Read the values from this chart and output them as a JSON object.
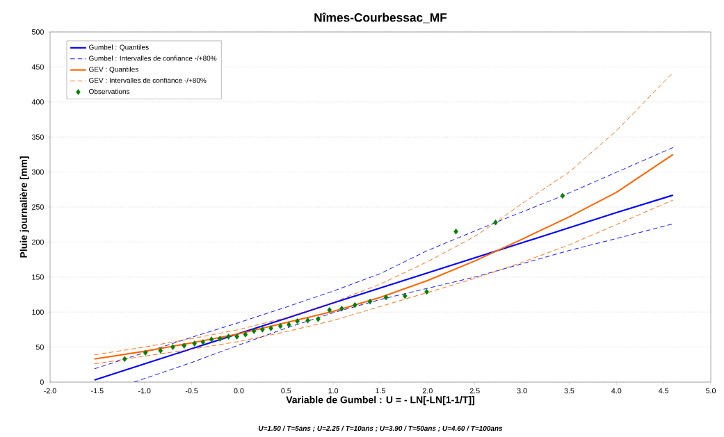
{
  "chart_data": {
    "type": "line",
    "title": "Nîmes-Courbessac_MF",
    "xlabel": "Variable de Gumbel : U = - LN[-LN[1-1/T]]",
    "ylabel": "Pluie journalière [mm]",
    "annotations": [
      "U=1.50 / T=5ans ; U=2.25 / T=10ans ; U=3.90 / T=50ans ; U=4.60 / T=100ans"
    ],
    "xlim": [
      -2,
      5
    ],
    "ylim": [
      0,
      500
    ],
    "xticks": [
      {
        "value": -2,
        "label": "-2.0"
      },
      {
        "value": -1.5,
        "label": "-1.5"
      },
      {
        "value": -1,
        "label": "-1.0"
      },
      {
        "value": -0.5,
        "label": "-0.5"
      },
      {
        "value": 0,
        "label": "0.0"
      },
      {
        "value": 0.5,
        "label": "0.5"
      },
      {
        "value": 1,
        "label": "1.0"
      },
      {
        "value": 1.5,
        "label": "1.5"
      },
      {
        "value": 2,
        "label": "2.0"
      },
      {
        "value": 2.5,
        "label": "2.5"
      },
      {
        "value": 3,
        "label": "3.0"
      },
      {
        "value": 3.5,
        "label": "3.5"
      },
      {
        "value": 4,
        "label": "4.0"
      },
      {
        "value": 4.5,
        "label": "4.5"
      },
      {
        "value": 5,
        "label": "5.0"
      }
    ],
    "yticks": [
      0,
      50,
      100,
      150,
      200,
      250,
      300,
      350,
      400,
      450,
      500
    ],
    "grid": "y",
    "legend": "top left",
    "series": [
      {
        "name": "Gumbel : Quantiles",
        "color": "#0000ff",
        "line_style": "solid",
        "marker": "none",
        "x": [
          -1.53,
          -1,
          0.5,
          1,
          2,
          3,
          4,
          4.6
        ],
        "values": [
          3,
          26,
          91,
          113,
          156,
          199,
          242,
          267
        ]
      },
      {
        "name": "Gumbel : Intervalles de confiance -/+80%",
        "color": "#0000ff",
        "line_style": "dashed",
        "marker": "none",
        "x": [
          -1.53,
          -1,
          -0.5,
          0,
          0.5,
          1,
          1.5,
          2,
          2.72,
          3.43,
          4.6
        ],
        "values": [
          19,
          42,
          64,
          85,
          107,
          130,
          155,
          188,
          228,
          266,
          335
        ]
      },
      {
        "color": "#0000ff",
        "line_style": "dashed",
        "marker": "none",
        "x": [
          -1.11,
          -0.5,
          0,
          0.5,
          1,
          1.5,
          2,
          2.5,
          3,
          3.5,
          4,
          4.6
        ],
        "values": [
          0,
          28,
          53,
          77,
          99,
          118,
          134,
          150,
          169,
          188,
          205,
          226
        ]
      },
      {
        "name": "GEV : Quantiles",
        "color": "#ff6600",
        "line_style": "solid",
        "marker": "none",
        "x": [
          -1.53,
          -1,
          -0.5,
          0,
          0.5,
          1,
          1.5,
          2,
          2.5,
          3,
          3.5,
          4,
          4.6
        ],
        "values": [
          33,
          44,
          56,
          69,
          85,
          101,
          121,
          145,
          173,
          204,
          236,
          271,
          325
        ]
      },
      {
        "name": "GEV : Intervalles de confiance -/+80%",
        "color": "#ff6600",
        "line_style": "dashed",
        "marker": "none",
        "x": [
          -1.53,
          -1,
          -0.5,
          0,
          0.5,
          1,
          1.5,
          2,
          2.5,
          2.72,
          3,
          3.5,
          4,
          4.6
        ],
        "values": [
          39,
          50,
          62,
          75,
          92,
          114,
          140,
          172,
          208,
          228,
          255,
          300,
          359,
          442
        ]
      },
      {
        "color": "#ff6600",
        "line_style": "dashed",
        "marker": "none",
        "x": [
          -1.53,
          -1,
          -0.5,
          0,
          0.5,
          1,
          1.5,
          2,
          2.5,
          3,
          3.5,
          4,
          4.6
        ],
        "values": [
          26,
          37,
          47,
          58,
          72,
          88,
          108,
          128,
          148,
          171,
          196,
          225,
          260
        ]
      },
      {
        "name": "Observations",
        "type": "scatter",
        "color": "#008000",
        "marker": "diamond",
        "x": [
          -1.21,
          -0.99,
          -0.83,
          -0.7,
          -0.58,
          -0.47,
          -0.38,
          -0.29,
          -0.2,
          -0.11,
          -0.02,
          0.07,
          0.16,
          0.25,
          0.34,
          0.44,
          0.53,
          0.62,
          0.73,
          0.84,
          0.96,
          1.09,
          1.23,
          1.39,
          1.56,
          1.76,
          1.99,
          2.3,
          2.72,
          3.43
        ],
        "values": [
          33,
          42,
          45,
          50,
          52,
          55,
          57,
          61,
          62,
          65,
          65,
          68,
          73,
          75,
          77,
          80,
          82,
          87,
          88,
          90,
          103,
          105,
          110,
          115,
          121,
          123,
          129,
          215,
          228,
          266
        ]
      }
    ]
  }
}
